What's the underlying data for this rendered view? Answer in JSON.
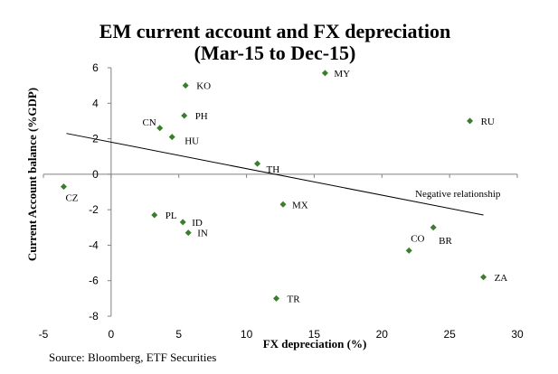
{
  "chart_data": {
    "type": "scatter",
    "title": "EM current account and FX depreciation",
    "subtitle": "(Mar-15 to Dec-15)",
    "xlabel": "FX depreciation (%)",
    "ylabel": "Current Account balance (%GDP)",
    "xlim": [
      -5,
      30
    ],
    "ylim": [
      -8,
      6
    ],
    "xticks": [
      -5,
      0,
      5,
      10,
      15,
      20,
      25,
      30
    ],
    "yticks": [
      -8,
      -6,
      -4,
      -2,
      0,
      2,
      4,
      6
    ],
    "marker_color": "#3a7d2c",
    "points": [
      {
        "label": "MY",
        "x": 15.8,
        "y": 5.7
      },
      {
        "label": "KO",
        "x": 5.5,
        "y": 5.0
      },
      {
        "label": "PH",
        "x": 5.4,
        "y": 3.3
      },
      {
        "label": "CN",
        "x": 3.6,
        "y": 2.6
      },
      {
        "label": "HU",
        "x": 4.5,
        "y": 2.1
      },
      {
        "label": "RU",
        "x": 26.5,
        "y": 3.0
      },
      {
        "label": "TH",
        "x": 10.8,
        "y": 0.6
      },
      {
        "label": "CZ",
        "x": -3.5,
        "y": -0.7
      },
      {
        "label": "PL",
        "x": 3.2,
        "y": -2.3
      },
      {
        "label": "ID",
        "x": 5.3,
        "y": -2.7
      },
      {
        "label": "IN",
        "x": 5.7,
        "y": -3.3
      },
      {
        "label": "MX",
        "x": 12.7,
        "y": -1.7
      },
      {
        "label": "CO",
        "x": 22.0,
        "y": -4.3
      },
      {
        "label": "BR",
        "x": 23.8,
        "y": -3.0
      },
      {
        "label": "ZA",
        "x": 27.5,
        "y": -5.8
      },
      {
        "label": "TR",
        "x": 12.2,
        "y": -7.0
      }
    ],
    "trendline": {
      "x1": -3.3,
      "y1": 2.3,
      "x2": 27.5,
      "y2": -2.3
    },
    "annotation": "Negative relationship"
  },
  "source": "Source: Bloomberg, ETF Securities"
}
